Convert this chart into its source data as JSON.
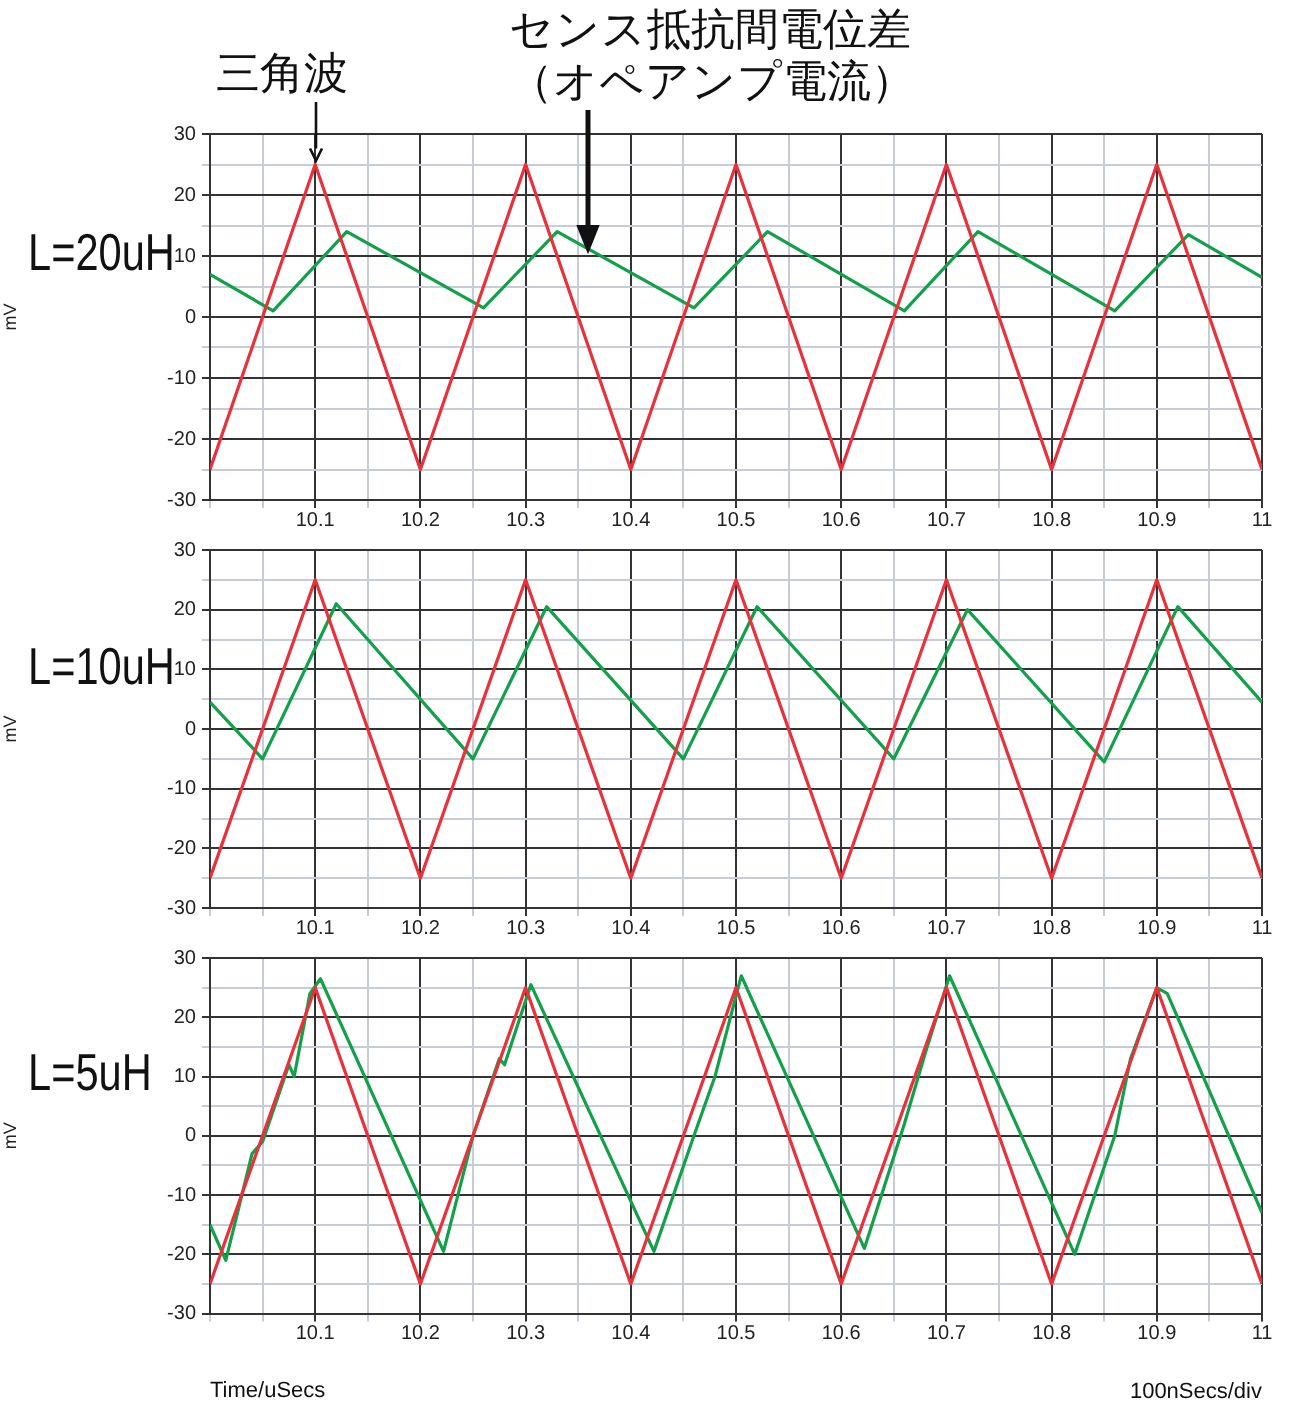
{
  "chart_data": [
    {
      "type": "line",
      "title": "L=20uH",
      "ylabel": "mV",
      "xlim": [
        10,
        11
      ],
      "ylim": [
        -30,
        30
      ],
      "grid": true,
      "legend": false,
      "marker": "none",
      "xticks": [
        {
          "value": 10,
          "label": null
        },
        {
          "value": 10.05,
          "label": null
        },
        10.1,
        {
          "value": 10.15,
          "label": null
        },
        10.2,
        {
          "value": 10.25,
          "label": null
        },
        10.3,
        {
          "value": 10.35,
          "label": null
        },
        10.4,
        {
          "value": 10.45,
          "label": null
        },
        10.5,
        {
          "value": 10.55,
          "label": null
        },
        10.6,
        {
          "value": 10.65,
          "label": null
        },
        10.7,
        {
          "value": 10.75,
          "label": null
        },
        10.8,
        {
          "value": 10.85,
          "label": null
        },
        10.9,
        {
          "value": 10.95,
          "label": null
        },
        11
      ],
      "yticks": [
        -30,
        {
          "value": -25,
          "label": null
        },
        -20,
        {
          "value": -15,
          "label": null
        },
        -10,
        {
          "value": -5,
          "label": null
        },
        0,
        {
          "value": 5,
          "label": null
        },
        10,
        {
          "value": 15,
          "label": null
        },
        20,
        {
          "value": 25,
          "label": null
        },
        30
      ],
      "annotations": [
        {
          "text": "三角波",
          "x": 10.1,
          "y": 25
        },
        "センス抵抗間電位差（オペアンプ電流）"
      ],
      "series": [
        {
          "color": "#e8313a",
          "x": [
            10,
            10.1,
            10.2,
            10.3,
            10.4,
            10.5,
            10.6,
            10.7,
            10.8,
            10.9,
            11
          ],
          "values": [
            -25,
            25,
            -25,
            25,
            -25,
            25,
            -25,
            25,
            -25,
            25,
            -25
          ]
        },
        {
          "color": "#12a04a",
          "x": [
            10,
            10.06,
            10.13,
            10.26,
            10.33,
            10.46,
            10.53,
            10.66,
            10.73,
            10.86,
            10.93,
            11
          ],
          "values": [
            7,
            1,
            14,
            1.5,
            14,
            1.5,
            14,
            1,
            14,
            1,
            13.5,
            6.5
          ]
        }
      ]
    },
    {
      "type": "line",
      "title": "L=10uH",
      "ylabel": "mV",
      "xlim": [
        10,
        11
      ],
      "ylim": [
        -30,
        30
      ],
      "grid": true,
      "legend": false,
      "marker": "none",
      "xticks": [
        {
          "value": 10,
          "label": null
        },
        {
          "value": 10.05,
          "label": null
        },
        10.1,
        {
          "value": 10.15,
          "label": null
        },
        10.2,
        {
          "value": 10.25,
          "label": null
        },
        10.3,
        {
          "value": 10.35,
          "label": null
        },
        10.4,
        {
          "value": 10.45,
          "label": null
        },
        10.5,
        {
          "value": 10.55,
          "label": null
        },
        10.6,
        {
          "value": 10.65,
          "label": null
        },
        10.7,
        {
          "value": 10.75,
          "label": null
        },
        10.8,
        {
          "value": 10.85,
          "label": null
        },
        10.9,
        {
          "value": 10.95,
          "label": null
        },
        11
      ],
      "yticks": [
        -30,
        {
          "value": -25,
          "label": null
        },
        -20,
        {
          "value": -15,
          "label": null
        },
        -10,
        {
          "value": -5,
          "label": null
        },
        0,
        {
          "value": 5,
          "label": null
        },
        10,
        {
          "value": 15,
          "label": null
        },
        20,
        {
          "value": 25,
          "label": null
        },
        30
      ],
      "series": [
        {
          "color": "#e8313a",
          "x": [
            10,
            10.1,
            10.2,
            10.3,
            10.4,
            10.5,
            10.6,
            10.7,
            10.8,
            10.9,
            11
          ],
          "values": [
            -25,
            25,
            -25,
            25,
            -25,
            25,
            -25,
            25,
            -25,
            25,
            -25
          ]
        },
        {
          "color": "#12a04a",
          "x": [
            10,
            10.05,
            10.12,
            10.25,
            10.32,
            10.45,
            10.52,
            10.65,
            10.72,
            10.85,
            10.92,
            11
          ],
          "values": [
            4.5,
            -5,
            21,
            -5,
            20.5,
            -5,
            20.5,
            -5,
            20,
            -5.5,
            20.5,
            4.5
          ]
        }
      ]
    },
    {
      "type": "line",
      "title": "L=5uH",
      "ylabel": "mV",
      "xlabel": "Time/uSecs",
      "xlim": [
        10,
        11
      ],
      "ylim": [
        -30,
        30
      ],
      "grid": true,
      "legend": false,
      "marker": "none",
      "xticks": [
        {
          "value": 10,
          "label": null
        },
        {
          "value": 10.05,
          "label": null
        },
        10.1,
        {
          "value": 10.15,
          "label": null
        },
        10.2,
        {
          "value": 10.25,
          "label": null
        },
        10.3,
        {
          "value": 10.35,
          "label": null
        },
        10.4,
        {
          "value": 10.45,
          "label": null
        },
        10.5,
        {
          "value": 10.55,
          "label": null
        },
        10.6,
        {
          "value": 10.65,
          "label": null
        },
        10.7,
        {
          "value": 10.75,
          "label": null
        },
        10.8,
        {
          "value": 10.85,
          "label": null
        },
        10.9,
        {
          "value": 10.95,
          "label": null
        },
        11
      ],
      "yticks": [
        -30,
        {
          "value": -25,
          "label": null
        },
        -20,
        {
          "value": -15,
          "label": null
        },
        -10,
        {
          "value": -5,
          "label": null
        },
        0,
        {
          "value": 5,
          "label": null
        },
        10,
        {
          "value": 15,
          "label": null
        },
        20,
        {
          "value": 25,
          "label": null
        },
        30
      ],
      "annotations": [
        "100nSecs/div"
      ],
      "series": [
        {
          "color": "#e8313a",
          "x": [
            10,
            10.1,
            10.2,
            10.3,
            10.4,
            10.5,
            10.6,
            10.7,
            10.8,
            10.9,
            11
          ],
          "values": [
            -25,
            25,
            -25,
            25,
            -25,
            25,
            -25,
            25,
            -25,
            25,
            -25
          ]
        },
        {
          "color": "#12a04a",
          "x": [
            10,
            10.015,
            10.04,
            10.05,
            10.075,
            10.08,
            10.095,
            10.105,
            10.222,
            10.25,
            10.275,
            10.28,
            10.305,
            10.422,
            10.46,
            10.48,
            10.505,
            10.622,
            10.66,
            10.68,
            10.703,
            10.822,
            10.86,
            10.875,
            10.9,
            10.91,
            11
          ],
          "values": [
            -15,
            -21,
            -3,
            -1,
            12,
            10,
            24,
            26.5,
            -19.5,
            0,
            13,
            12,
            25.5,
            -19.5,
            0,
            10,
            27,
            -19,
            2,
            14,
            27,
            -20,
            0,
            13,
            25,
            24,
            -13
          ]
        }
      ]
    }
  ]
}
